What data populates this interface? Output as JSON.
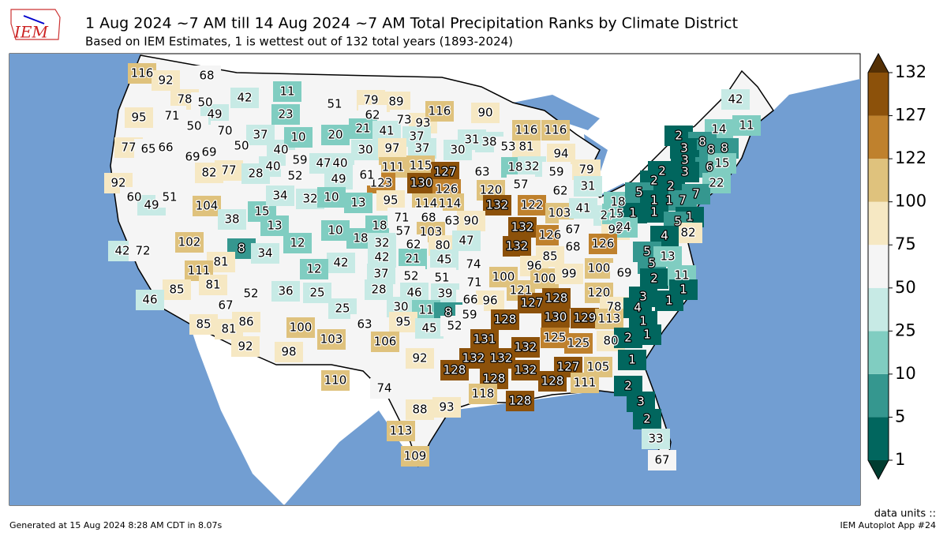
{
  "header": {
    "logo": "IEM",
    "title": "1 Aug 2024 ~7 AM till 14 Aug 2024 ~7 AM Total Precipitation Ranks by Climate District",
    "subtitle": "Based on IEM Estimates, 1 is wettest out of 132 total years (1893-2024)"
  },
  "colorbar": {
    "ticks": [
      1,
      5,
      10,
      25,
      50,
      75,
      100,
      122,
      127,
      132
    ],
    "colors": [
      "#01665e",
      "#35978f",
      "#80cdc1",
      "#c7eae5",
      "#f5f5f5",
      "#f6e8c3",
      "#dfc27d",
      "#bf812d",
      "#8c510a"
    ],
    "under": "#003c30",
    "over": "#543005"
  },
  "districts": [
    116,
    92,
    68,
    78,
    50,
    95,
    71,
    49,
    50,
    70,
    77,
    65,
    66,
    50,
    69,
    69,
    82,
    77,
    28,
    40,
    40,
    37,
    59,
    47,
    40,
    52,
    49,
    42,
    11,
    23,
    10,
    51,
    20,
    79,
    89,
    62,
    73,
    93,
    116,
    90,
    21,
    41,
    37,
    30,
    97,
    37,
    30,
    31,
    38,
    53,
    81,
    116,
    116,
    94,
    111,
    115,
    127,
    63,
    18,
    32,
    59,
    79,
    123,
    130,
    126,
    120,
    57,
    62,
    31,
    61,
    92,
    60,
    49,
    51,
    104,
    38,
    15,
    34,
    32,
    10,
    13,
    95,
    114,
    114,
    132,
    122,
    103,
    41,
    18,
    27,
    13,
    102,
    8,
    34,
    12,
    10,
    18,
    18,
    71,
    68,
    63,
    90,
    57,
    103,
    32,
    62,
    80,
    47,
    132,
    126,
    67,
    99,
    15,
    1,
    24,
    132,
    68,
    126,
    42,
    72,
    81,
    111,
    42,
    12,
    42,
    21,
    45,
    74,
    96,
    85,
    37,
    52,
    51,
    100,
    100,
    99,
    100,
    69,
    85,
    81,
    52,
    36,
    25,
    71,
    46,
    39,
    28,
    121,
    127,
    128,
    120,
    46,
    67,
    86,
    85,
    81,
    25,
    66,
    96,
    30,
    11,
    8,
    59,
    78,
    4,
    100,
    103,
    63,
    95,
    45,
    52,
    128,
    130,
    129,
    113,
    1,
    106,
    131,
    132,
    125,
    125,
    80,
    2,
    1,
    92,
    98,
    92,
    132,
    132,
    128,
    132,
    127,
    105,
    1,
    128,
    128,
    111,
    110,
    74,
    2,
    118,
    128,
    3,
    88,
    93,
    2,
    113,
    33,
    109,
    67,
    42,
    11,
    14,
    2,
    8,
    3,
    8,
    8,
    2,
    3,
    6,
    15,
    2,
    2,
    3,
    22,
    7,
    5,
    1,
    1,
    7,
    1,
    1,
    5,
    82,
    4,
    5,
    5,
    13,
    2,
    11,
    1,
    3,
    1
  ],
  "footer": {
    "generated": "Generated at 15 Aug 2024 8:28 AM CDT in 8.07s",
    "units": "data units ::",
    "app": "IEM Autoplot App #24"
  }
}
